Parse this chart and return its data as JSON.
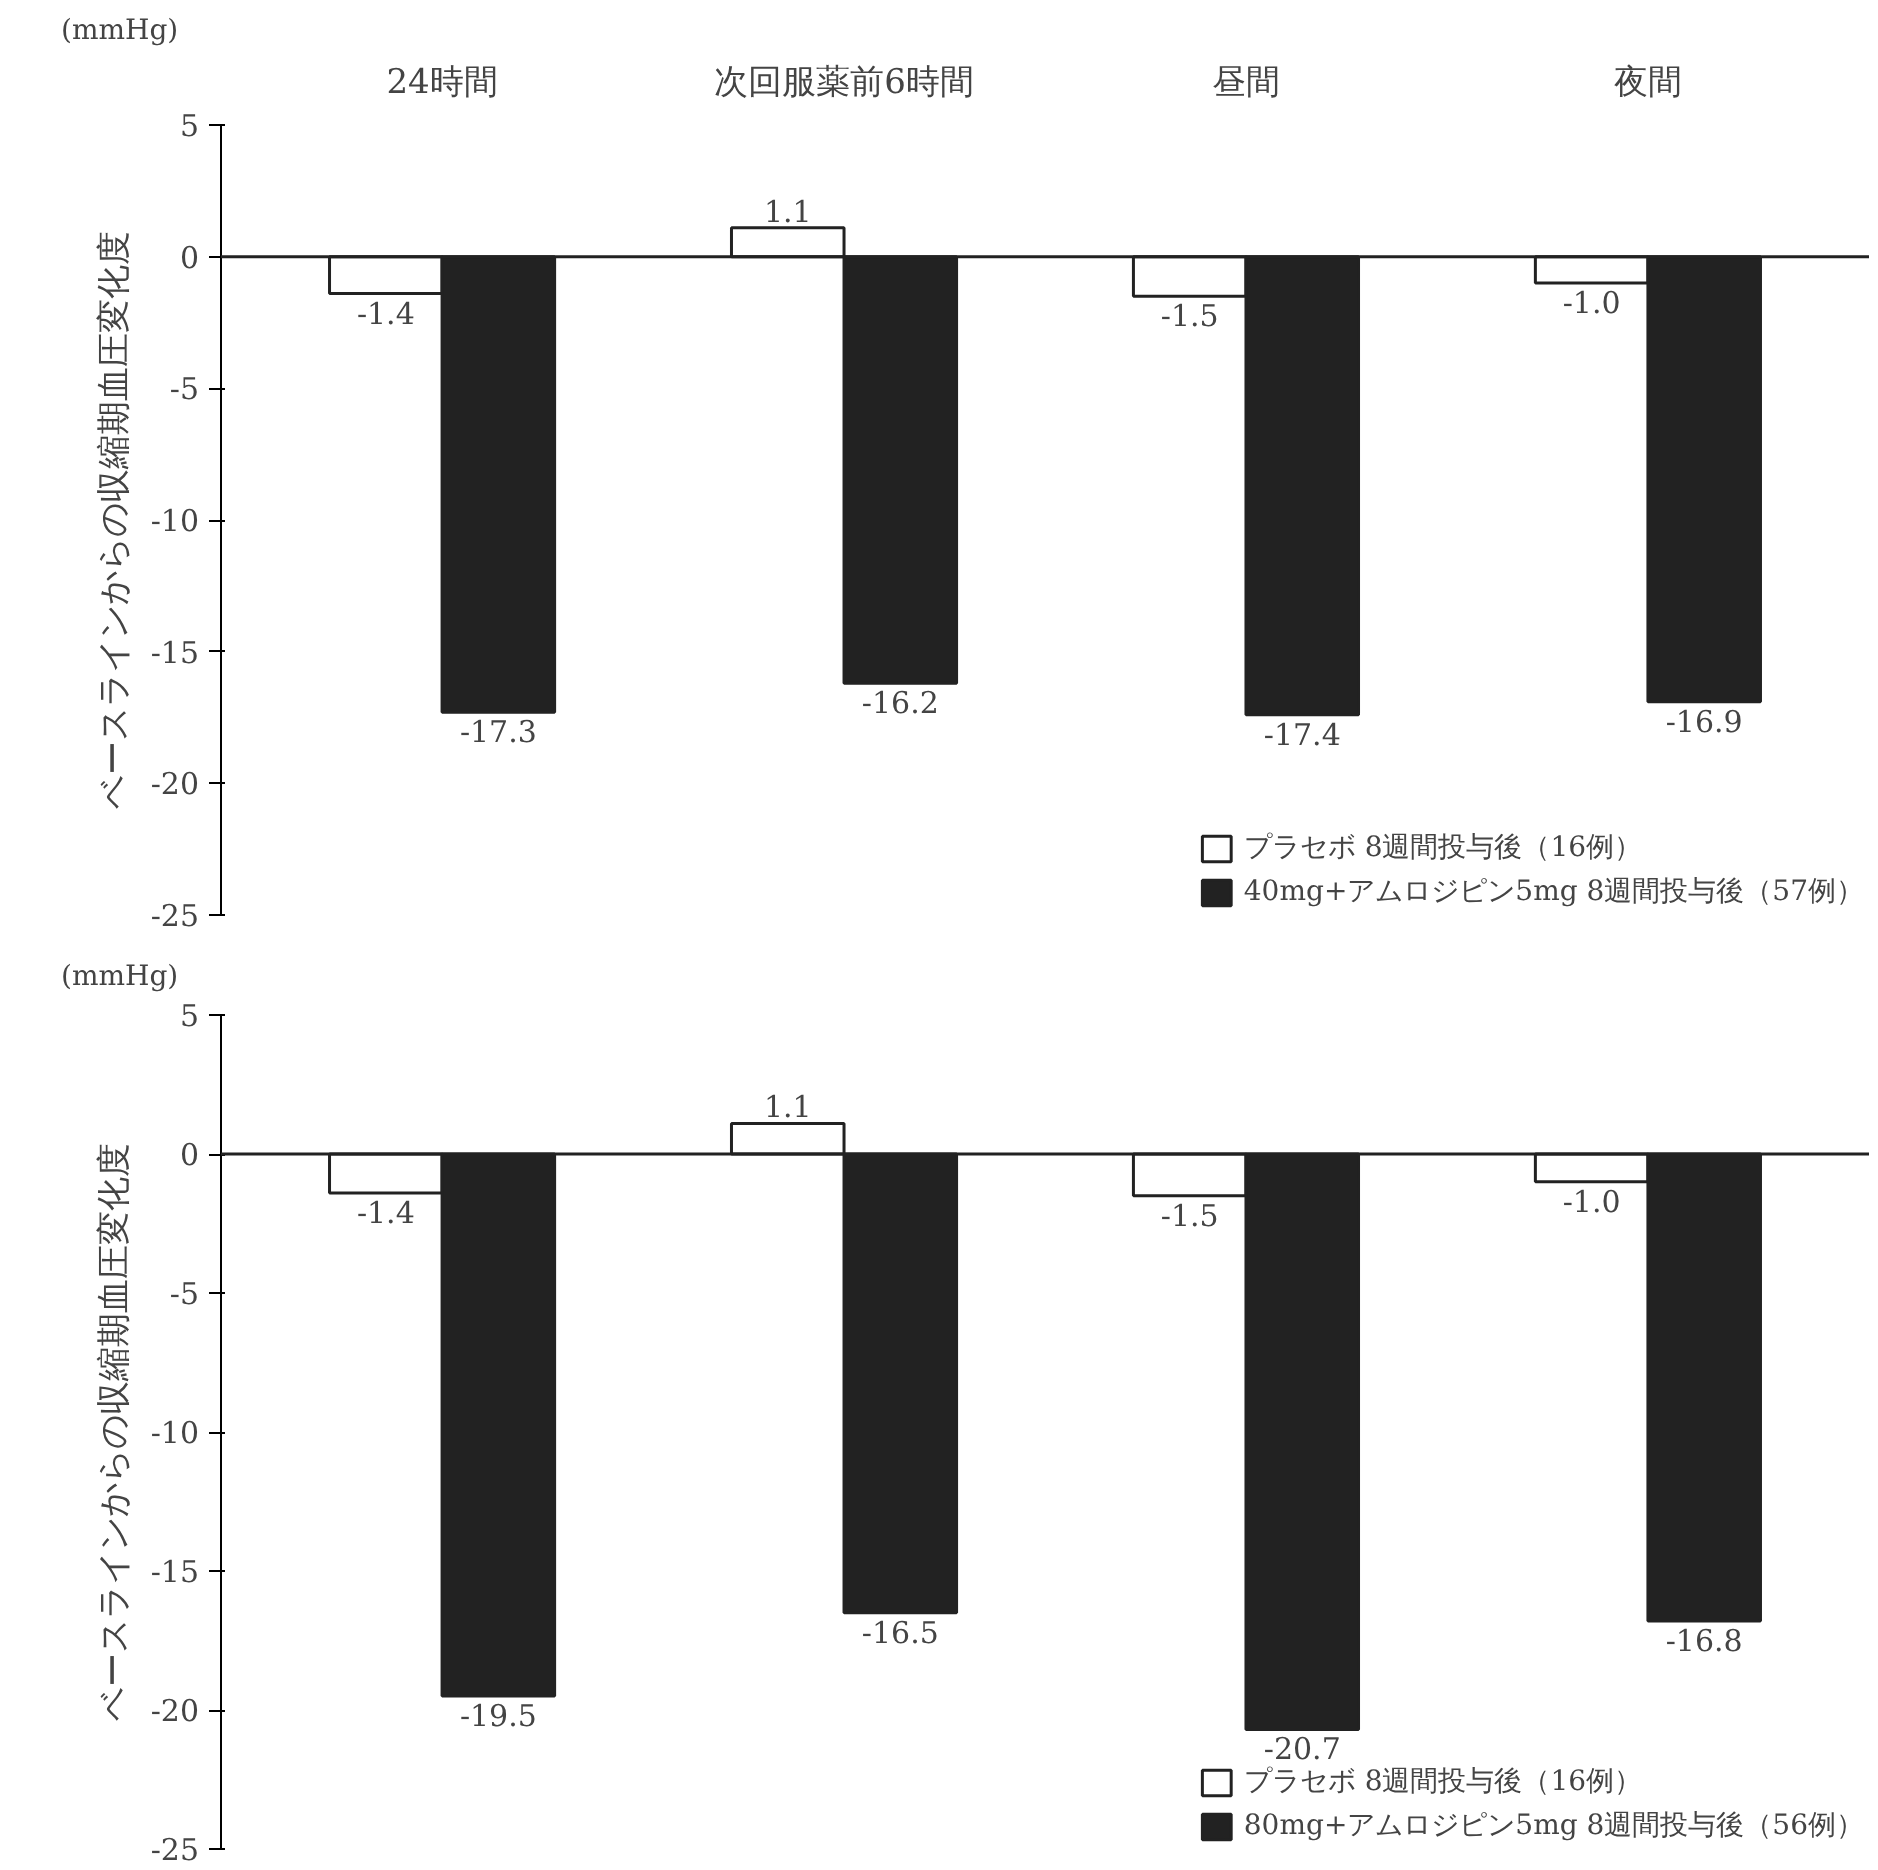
{
  "chart_data": [
    {
      "type": "bar",
      "categories": [
        "24時間",
        "次回服薬前6時間",
        "昼間",
        "夜間"
      ],
      "ylabel": "ベースラインからの収縮期血圧変化度",
      "annotations": [
        "(mmHg)"
      ],
      "ylim": [
        -25,
        5
      ],
      "yticks": [
        -25,
        -20,
        -15,
        -10,
        -5,
        0,
        5
      ],
      "grid": false,
      "legend": "bottom right",
      "ref_lines": [
        {
          "axis": "y",
          "value": 0
        }
      ],
      "series": [
        {
          "name": "プラセボ 8週間投与後（16例）",
          "color": "#ffffff",
          "values": [
            -1.4,
            1.1,
            -1.5,
            -1.0
          ],
          "value_labels": [
            "-1.4",
            "1.1",
            "-1.5",
            "-1.0"
          ]
        },
        {
          "name": "40mg+アムロジピン5mg 8週間投与後（57例）",
          "color": "#222222",
          "values": [
            -17.3,
            -16.2,
            -17.4,
            -16.9
          ],
          "value_labels": [
            "-17.3",
            "-16.2",
            "-17.4",
            "-16.9"
          ]
        }
      ]
    },
    {
      "type": "bar",
      "categories": [
        null,
        null,
        null,
        null
      ],
      "ylabel": "ベースラインからの収縮期血圧変化度",
      "annotations": [
        "(mmHg)"
      ],
      "ylim": [
        -25,
        5
      ],
      "yticks": [
        -25,
        -20,
        -15,
        -10,
        -5,
        0,
        5
      ],
      "grid": false,
      "legend": "bottom right",
      "ref_lines": [
        {
          "axis": "y",
          "value": 0
        }
      ],
      "series": [
        {
          "name": "プラセボ 8週間投与後（16例）",
          "color": "#ffffff",
          "values": [
            -1.4,
            1.1,
            -1.5,
            -1.0
          ],
          "value_labels": [
            "-1.4",
            "1.1",
            "-1.5",
            "-1.0"
          ]
        },
        {
          "name": "80mg+アムロジピン5mg 8週間投与後（56例）",
          "color": "#222222",
          "values": [
            -19.5,
            -16.5,
            -20.7,
            -16.8
          ],
          "value_labels": [
            "-19.5",
            "-16.5",
            "-20.7",
            "-16.8"
          ]
        }
      ]
    }
  ]
}
